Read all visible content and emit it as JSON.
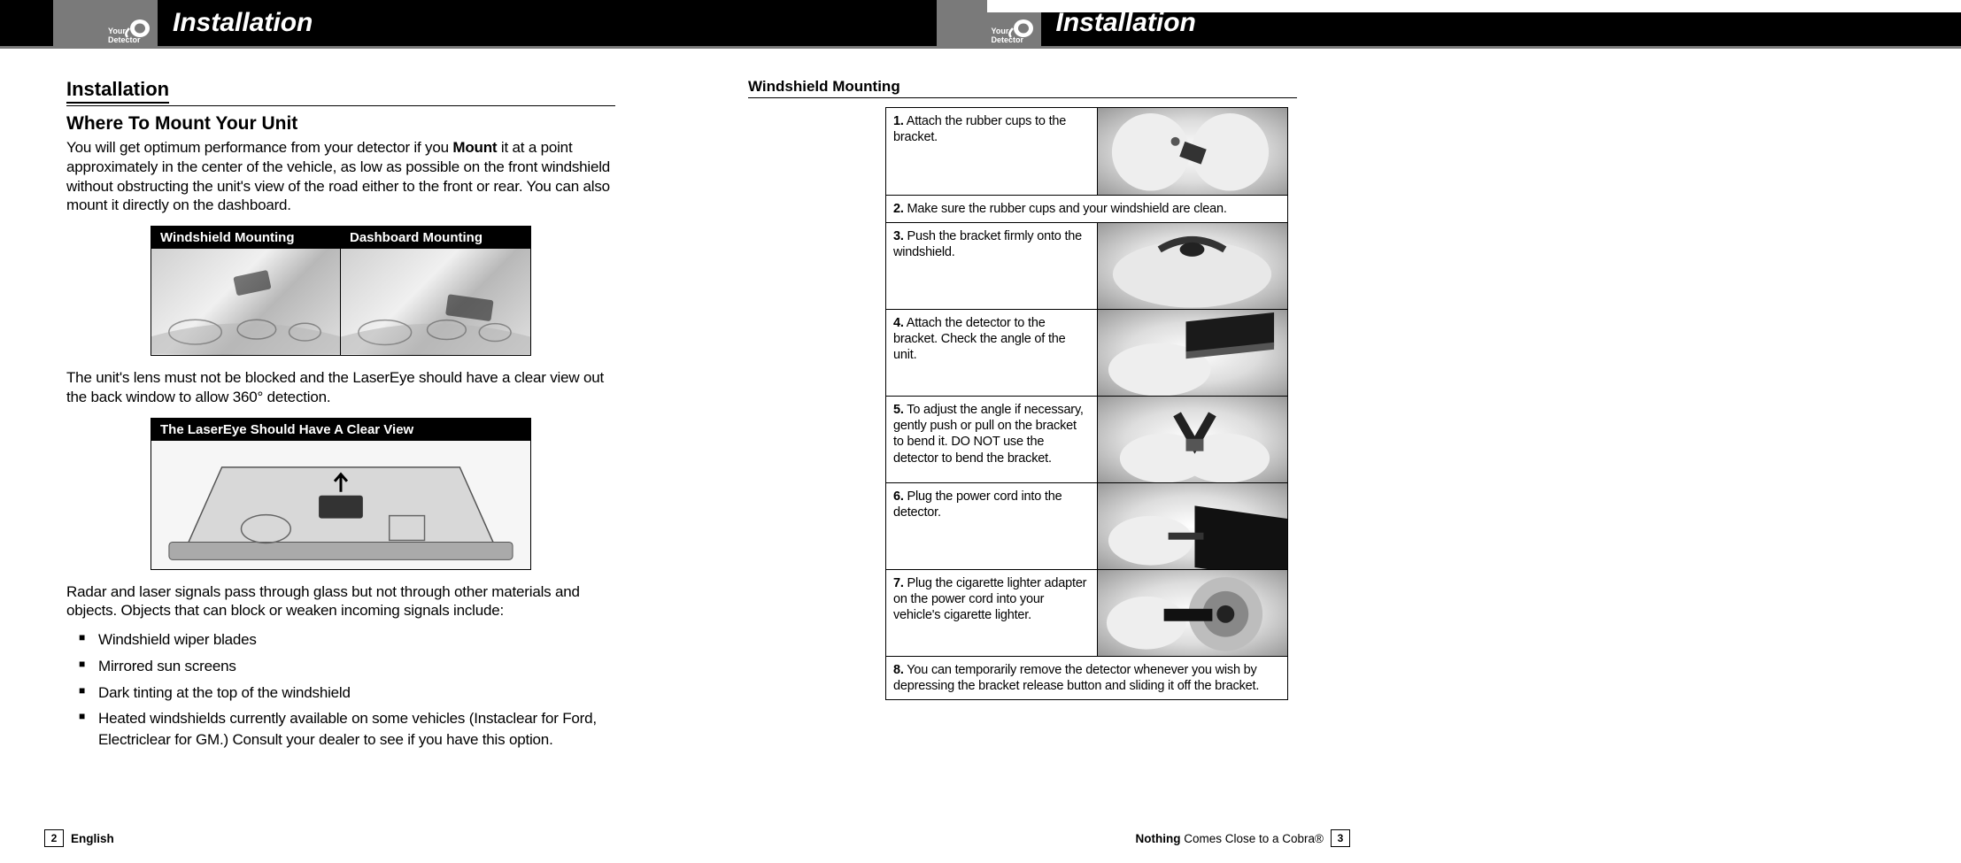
{
  "header": {
    "your_detector": "Your Detector",
    "title_left": "Installation",
    "title_right": "Installation"
  },
  "left_page": {
    "section_title": "Installation",
    "sub_title": "Where To Mount Your Unit",
    "p1_pre": "You will get optimum performance from your detector if you ",
    "p1_bold": "Mount",
    "p1_post": " it at a point approximately in the center of the vehicle, as low as possible on the front windshield without obstructing the unit's view of the road either to the front or rear. You can also mount it directly on the dashboard.",
    "mount_header_left": "Windshield Mounting",
    "mount_header_right": "Dashboard Mounting",
    "p2": "The unit's lens must not be blocked and the LaserEye should have a clear view out the back window to allow 360° detection.",
    "clear_view_header": "The LaserEye Should Have A Clear View",
    "p3": "Radar and laser signals pass through glass but not through other materials and objects. Objects that can block or weaken incoming signals include:",
    "bullets": [
      "Windshield wiper blades",
      "Mirrored sun screens",
      "Dark tinting at the top of the windshield",
      "Heated windshields currently available on some vehicles (Instaclear for Ford, Electriclear for GM.) Consult your dealer to see if you have this option."
    ]
  },
  "right_page": {
    "title": "Windshield Mounting",
    "steps": [
      {
        "n": "1.",
        "text": "Attach the rubber cups to the bracket.",
        "img": true
      },
      {
        "n": "2.",
        "text": "Make sure the rubber cups and your windshield are clean.",
        "img": false
      },
      {
        "n": "3.",
        "text": "Push the bracket firmly onto the windshield.",
        "img": true
      },
      {
        "n": "4.",
        "text": "Attach the detector to the bracket. Check the angle of the unit.",
        "img": true
      },
      {
        "n": "5.",
        "text": "To adjust the angle if necessary, gently push or pull on the bracket to bend it. DO NOT use the detector to bend the bracket.",
        "img": true
      },
      {
        "n": "6.",
        "text": "Plug the power cord into the detector.",
        "img": true
      },
      {
        "n": "7.",
        "text": "Plug the cigarette lighter adapter on the power cord into your vehicle's cigarette lighter.",
        "img": true
      },
      {
        "n": "8.",
        "text": "You can temporarily remove the detector whenever you wish by depressing the bracket release button and sliding it off the bracket.",
        "img": false
      }
    ]
  },
  "footer": {
    "left_page_num": "2",
    "left_text": "English",
    "right_text_bold": "Nothing",
    "right_text_rest": " Comes Close to a Cobra®",
    "right_page_num": "3"
  }
}
